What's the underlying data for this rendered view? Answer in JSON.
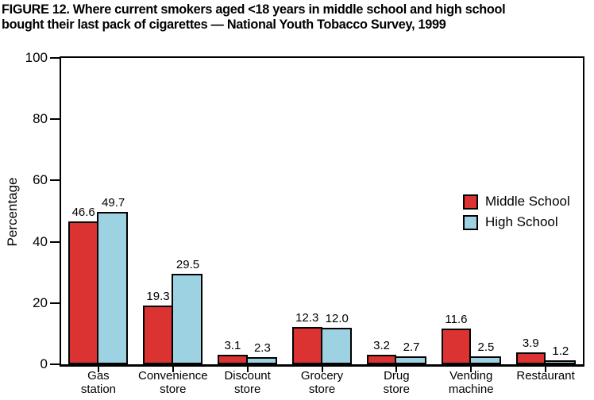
{
  "title": "FIGURE 12. Where current smokers aged <18 years in middle school and high school\nbought their last pack of cigarettes — National Youth Tobacco Survey, 1999",
  "chart_data": {
    "type": "bar",
    "title": "FIGURE 12. Where current smokers aged <18 years in middle school and high school bought their last pack of cigarettes — National Youth Tobacco Survey, 1999",
    "categories": [
      "Gas\nstation",
      "Convenience\nstore",
      "Discount\nstore",
      "Grocery\nstore",
      "Drug\nstore",
      "Vending\nmachine",
      "Restaurant"
    ],
    "series": [
      {
        "name": "Middle School",
        "color": "#DB3332",
        "values": [
          46.6,
          19.3,
          3.1,
          12.3,
          3.2,
          11.6,
          3.9
        ]
      },
      {
        "name": "High School",
        "color": "#9DD2E2",
        "values": [
          49.7,
          29.5,
          2.3,
          12.0,
          2.7,
          2.5,
          1.2
        ]
      }
    ],
    "xlabel": "",
    "ylabel": "Percentage",
    "ylim": [
      0,
      100
    ],
    "yticks": [
      0,
      20,
      40,
      60,
      80,
      100
    ],
    "grid": false,
    "value_labels": true,
    "legend_position": "inside-right",
    "bar_border_color": "#000000",
    "text_color": "#000000",
    "background_color": "#ffffff"
  }
}
